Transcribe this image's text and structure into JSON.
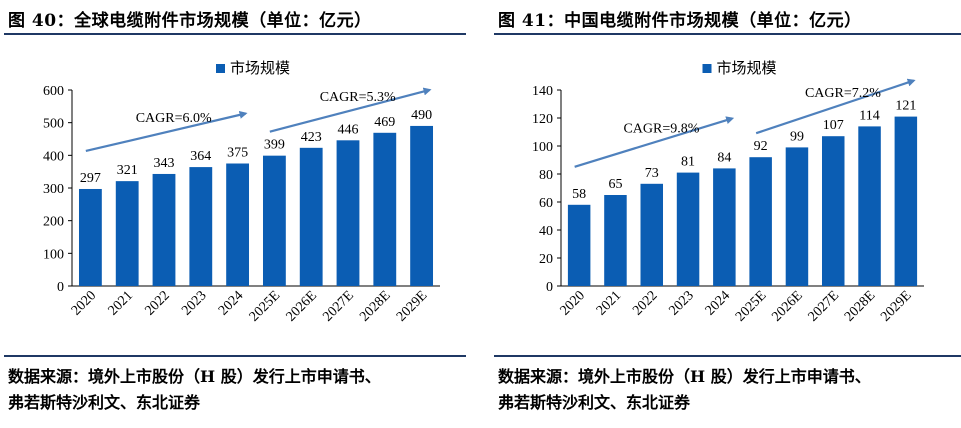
{
  "chart_data": [
    {
      "type": "bar",
      "title": "图 40：全球电缆附件市场规模（单位：亿元）",
      "legend": "市场规模",
      "categories": [
        "2020",
        "2021",
        "2022",
        "2023",
        "2024",
        "2025E",
        "2026E",
        "2027E",
        "2028E",
        "2029E"
      ],
      "values": [
        297,
        321,
        343,
        364,
        375,
        399,
        423,
        446,
        469,
        490
      ],
      "ylim": [
        0,
        600
      ],
      "yticks": [
        0,
        100,
        200,
        300,
        400,
        500,
        600
      ],
      "annotations": [
        {
          "text": "CAGR=6.0%",
          "from_index": 0,
          "to_index": 4
        },
        {
          "text": "CAGR=5.3%",
          "from_index": 5,
          "to_index": 9
        }
      ],
      "source": [
        "数据来源：境外上市股份（H 股）发行上市申请书、",
        "弗若斯特沙利文、东北证券"
      ]
    },
    {
      "type": "bar",
      "title": "图 41：中国电缆附件市场规模（单位：亿元）",
      "legend": "市场规模",
      "categories": [
        "2020",
        "2021",
        "2022",
        "2023",
        "2024",
        "2025E",
        "2026E",
        "2027E",
        "2028E",
        "2029E"
      ],
      "values": [
        58,
        65,
        73,
        81,
        84,
        92,
        99,
        107,
        114,
        121
      ],
      "ylim": [
        0,
        140
      ],
      "yticks": [
        0,
        20,
        40,
        60,
        80,
        100,
        120,
        140
      ],
      "annotations": [
        {
          "text": "CAGR=9.8%",
          "from_index": 0,
          "to_index": 4
        },
        {
          "text": "CAGR=7.2%",
          "from_index": 5,
          "to_index": 9
        }
      ],
      "source": [
        "数据来源：境外上市股份（H 股）发行上市申请书、",
        "弗若斯特沙利文、东北证券"
      ]
    }
  ],
  "colors": {
    "bar": "#0b5db3",
    "arrow": "#4f81bd",
    "rule": "#1f3864"
  }
}
